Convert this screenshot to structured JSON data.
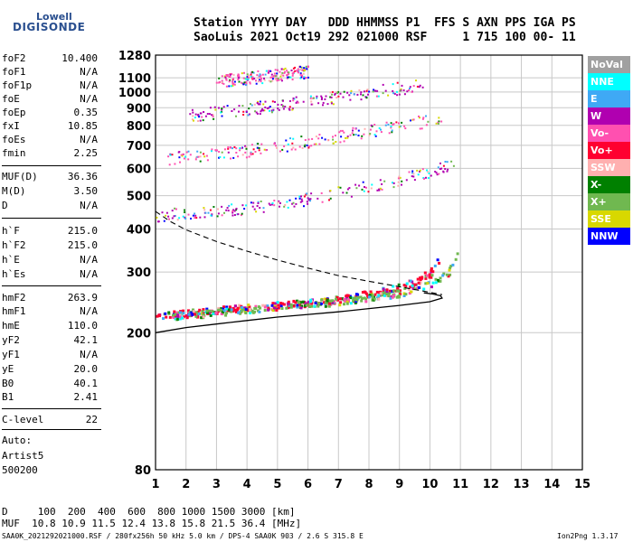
{
  "logo": {
    "top": "Lowell",
    "bottom": "DIGISONDE"
  },
  "header": {
    "line1": "Station YYYY DAY   DDD HHMMSS P1  FFS S AXN PPS IGA PS",
    "line2": "SaoLuis 2021 Oct19 292 021000 RSF     1 715 100 00- 11"
  },
  "scaled": [
    {
      "name": "foF2",
      "value": "10.400"
    },
    {
      "name": "foF1",
      "value": "N/A"
    },
    {
      "name": "foF1p",
      "value": "N/A"
    },
    {
      "name": "foE",
      "value": "N/A"
    },
    {
      "name": "foEp",
      "value": "0.35"
    },
    {
      "name": "fxI",
      "value": "10.85"
    },
    {
      "name": "foEs",
      "value": "N/A"
    },
    {
      "name": "fmin",
      "value": "2.25"
    },
    {
      "name": "MUF(D)",
      "value": "36.36"
    },
    {
      "name": "M(D)",
      "value": "3.50"
    },
    {
      "name": "D",
      "value": "N/A"
    },
    {
      "name": "h`F",
      "value": "215.0"
    },
    {
      "name": "h`F2",
      "value": "215.0"
    },
    {
      "name": "h`E",
      "value": "N/A"
    },
    {
      "name": "h`Es",
      "value": "N/A"
    },
    {
      "name": "hmF2",
      "value": "263.9"
    },
    {
      "name": "hmF1",
      "value": "N/A"
    },
    {
      "name": "hmE",
      "value": "110.0"
    },
    {
      "name": "yF2",
      "value": "42.1"
    },
    {
      "name": "yF1",
      "value": "N/A"
    },
    {
      "name": "yE",
      "value": "20.0"
    },
    {
      "name": "B0",
      "value": "40.1"
    },
    {
      "name": "B1",
      "value": "2.41"
    },
    {
      "name": "C-level",
      "value": "22"
    }
  ],
  "autoscale": {
    "line1": "Auto:",
    "line2": "Artist5",
    "line3": "500200"
  },
  "legend": [
    {
      "label": "NoVal",
      "color": "#a0a0a0"
    },
    {
      "label": "NNE",
      "color": "#00ffff"
    },
    {
      "label": "E",
      "color": "#3fa9f5"
    },
    {
      "label": "W",
      "color": "#b000b0"
    },
    {
      "label": "Vo-",
      "color": "#ff50b0"
    },
    {
      "label": "Vo+",
      "color": "#ff0030"
    },
    {
      "label": "SSW",
      "color": "#ffb0b0"
    },
    {
      "label": "X-",
      "color": "#008000"
    },
    {
      "label": "X+",
      "color": "#70b850"
    },
    {
      "label": "SSE",
      "color": "#d8d800"
    },
    {
      "label": "NNW",
      "color": "#0000ff"
    }
  ],
  "footer": {
    "d_row": "D     100  200  400  600  800 1000 1500 3000 [km]",
    "muf_row": "MUF  10.8 10.9 11.5 12.4 13.8 15.8 21.5 36.4 [MHz]",
    "file_left": "SAA0K_2021292021000.RSF / 280fx256h 50 kHz 5.0 km / DPS-4 SAA0K 903 / 2.6 S 315.8 E",
    "file_right": "Ion2Png 1.3.17"
  },
  "chart_data": {
    "type": "scatter",
    "title": "",
    "xlabel": "",
    "ylabel": "",
    "x_range": [
      1,
      15
    ],
    "x_ticks": [
      1,
      2,
      3,
      4,
      5,
      6,
      7,
      8,
      9,
      10,
      11,
      12,
      13,
      14,
      15
    ],
    "y_scale": "log",
    "y_range": [
      80,
      1280
    ],
    "y_ticks": [
      80,
      200,
      300,
      400,
      500,
      600,
      700,
      800,
      900,
      1000,
      1100,
      1280
    ],
    "grid": true,
    "echo_traces": [
      {
        "name": "F trace (O)",
        "color": "#ff0030",
        "x": [
          1.0,
          2.0,
          3.0,
          4.0,
          5.0,
          6.0,
          7.0,
          8.0,
          9.0,
          9.6,
          10.0,
          10.3,
          10.4
        ],
        "y": [
          225,
          230,
          234,
          238,
          242,
          246,
          252,
          260,
          272,
          285,
          300,
          330,
          430
        ]
      },
      {
        "name": "F trace (X)",
        "color": "#70b850",
        "x": [
          1.5,
          3.0,
          5.0,
          7.0,
          9.0,
          10.0,
          10.5,
          10.8,
          10.85
        ],
        "y": [
          225,
          230,
          240,
          248,
          262,
          278,
          295,
          330,
          420
        ]
      },
      {
        "name": "2F multiple",
        "color": "#b000b0",
        "x": [
          1.0,
          2.0,
          3.0,
          4.0,
          5.0,
          6.0,
          7.0,
          8.0,
          9.0,
          10.0,
          10.8
        ],
        "y": [
          440,
          445,
          452,
          462,
          475,
          492,
          512,
          535,
          560,
          590,
          625
        ]
      },
      {
        "name": "3F multiple",
        "color": "#ff50b0",
        "x": [
          1.4,
          2.0,
          3.0,
          4.0,
          5.0,
          6.0,
          7.0,
          8.0,
          9.0,
          10.0,
          10.3
        ],
        "y": [
          645,
          650,
          662,
          678,
          698,
          722,
          748,
          775,
          805,
          830,
          848
        ]
      },
      {
        "name": "4F multiple",
        "color": "#b000b0",
        "x": [
          2.1,
          3.0,
          4.0,
          5.0,
          6.0,
          7.0,
          8.0,
          9.0,
          9.8
        ],
        "y": [
          860,
          875,
          895,
          918,
          944,
          972,
          1000,
          1030,
          1060
        ]
      },
      {
        "name": "5F multiple",
        "color": "#ff50b0",
        "x": [
          3.0,
          4.0,
          5.0,
          6.0
        ],
        "y": [
          1080,
          1100,
          1125,
          1150
        ]
      }
    ],
    "profile": {
      "name": "profile",
      "x": [
        1.0,
        2.0,
        3.0,
        4.0,
        5.0,
        6.0,
        7.0,
        8.0,
        9.0,
        10.0,
        10.4,
        10.35,
        10.1,
        9.8
      ],
      "y": [
        200,
        207,
        212,
        217,
        222,
        226,
        230,
        235,
        240,
        246,
        252,
        256,
        259,
        261
      ]
    },
    "dashed_curve": {
      "name": "dashed",
      "x": [
        1.0,
        1.5,
        2.0,
        3.0,
        4.0,
        5.0,
        6.0,
        7.0,
        8.0,
        9.0,
        10.0,
        10.4
      ],
      "y": [
        450,
        420,
        398,
        368,
        345,
        325,
        308,
        293,
        282,
        272,
        262,
        258
      ]
    }
  }
}
